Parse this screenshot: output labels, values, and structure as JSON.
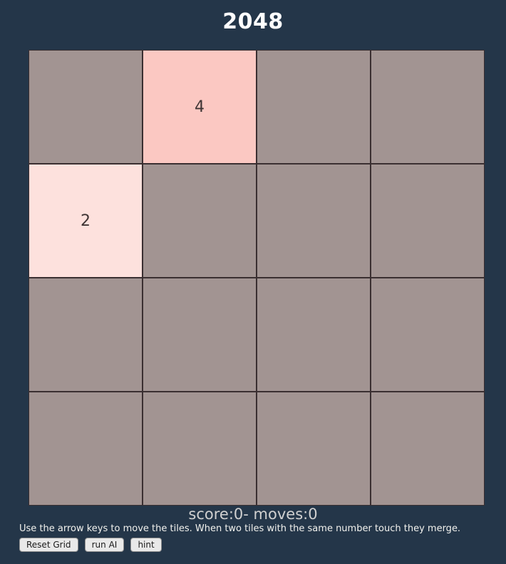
{
  "title": "2048",
  "colors": {
    "background": "#243649",
    "empty_cell": "#a29492",
    "grid_line": "#3a2f31",
    "tile_2": "#fde1dd",
    "tile_4": "#fbc8c2",
    "title_text": "#ffffff",
    "score_text": "#d0d0d0"
  },
  "grid": {
    "rows": 4,
    "cols": 4,
    "cells": [
      {
        "value": ""
      },
      {
        "value": "4"
      },
      {
        "value": ""
      },
      {
        "value": ""
      },
      {
        "value": "2"
      },
      {
        "value": ""
      },
      {
        "value": ""
      },
      {
        "value": ""
      },
      {
        "value": ""
      },
      {
        "value": ""
      },
      {
        "value": ""
      },
      {
        "value": ""
      },
      {
        "value": ""
      },
      {
        "value": ""
      },
      {
        "value": ""
      },
      {
        "value": ""
      }
    ]
  },
  "status": {
    "score": 0,
    "moves": 0,
    "score_text": "score:0- moves:0"
  },
  "instructions": "Use the arrow keys to move the tiles. When two tiles with the same number touch they merge.",
  "buttons": [
    {
      "label": "Reset Grid"
    },
    {
      "label": "run AI"
    },
    {
      "label": "hint"
    }
  ]
}
